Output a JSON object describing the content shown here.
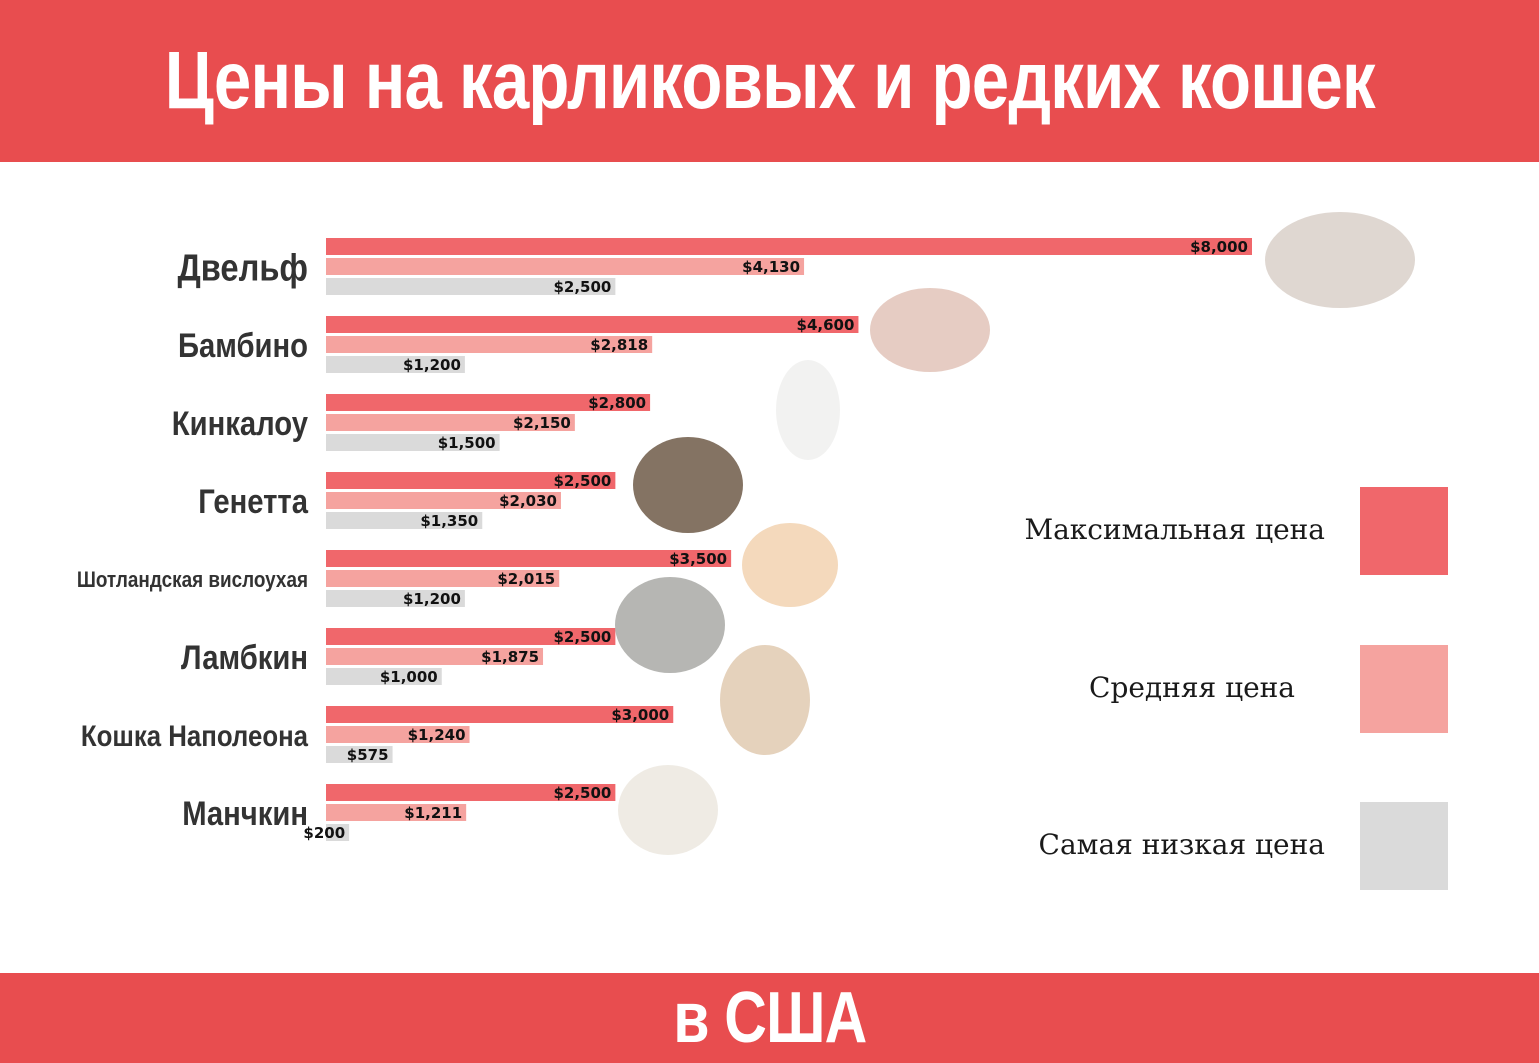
{
  "header": {
    "title": "Цены на карликовых и редких кошек"
  },
  "footer": {
    "title": "в США"
  },
  "colors": {
    "banner": "#e84d4f",
    "max": "#f0676b",
    "avg": "#f5a39f",
    "min": "#dadada",
    "label": "#333333"
  },
  "legend": [
    {
      "label": "Максимальная цена",
      "color": "#f0676b"
    },
    {
      "label": "Средняя цена",
      "color": "#f5a39f"
    },
    {
      "label": "Самая низкая цена",
      "color": "#dadada"
    }
  ],
  "chart_data": {
    "type": "bar",
    "orientation": "horizontal",
    "categories": [
      "Двельф",
      "Бамбино",
      "Кинкалоу",
      "Генетта",
      "Шотландская вислоухая",
      "Ламбкин",
      "Кошка Наполеона",
      "Манчкин"
    ],
    "series": [
      {
        "name": "Максимальная цена",
        "values": [
          8000,
          4600,
          2800,
          2500,
          3500,
          2500,
          3000,
          2500
        ]
      },
      {
        "name": "Средняя цена",
        "values": [
          4130,
          2818,
          2150,
          2030,
          2015,
          1875,
          1240,
          1211
        ]
      },
      {
        "name": "Самая низкая цена",
        "values": [
          2500,
          1200,
          1500,
          1350,
          1200,
          1000,
          575,
          200
        ]
      }
    ],
    "value_labels": [
      [
        "$8,000",
        "$4,130",
        "$2,500"
      ],
      [
        "$4,600",
        "$2,818",
        "$1,200"
      ],
      [
        "$2,800",
        "$2,150",
        "$1,500"
      ],
      [
        "$2,500",
        "$2,030",
        "$1,350"
      ],
      [
        "$3,500",
        "$2,015",
        "$1,200"
      ],
      [
        "$2,500",
        "$1,875",
        "$1,000"
      ],
      [
        "$3,000",
        "$1,240",
        "$575"
      ],
      [
        "$2,500",
        "$1,211",
        "$200"
      ]
    ],
    "xlim": [
      0,
      8000
    ],
    "grid": false,
    "legend_position": "right",
    "title": "",
    "xlabel": "",
    "ylabel": ""
  },
  "images": [
    {
      "name": "dwelf-cat-photo",
      "color": "#d9d0c9"
    },
    {
      "name": "bambino-cat-photo",
      "color": "#e2c3b8"
    },
    {
      "name": "kinkalow-cat-photo",
      "color": "#f0f0ee"
    },
    {
      "name": "genetta-cat-photo",
      "color": "#6e5a48"
    },
    {
      "name": "scottish-fold-cat-photo",
      "color": "#f2d2b0"
    },
    {
      "name": "lambkin-cat-photo",
      "color": "#a9a9a6"
    },
    {
      "name": "napoleon-cat-photo",
      "color": "#e0cab0"
    },
    {
      "name": "munchkin-cat-photo",
      "color": "#ece7df"
    }
  ]
}
